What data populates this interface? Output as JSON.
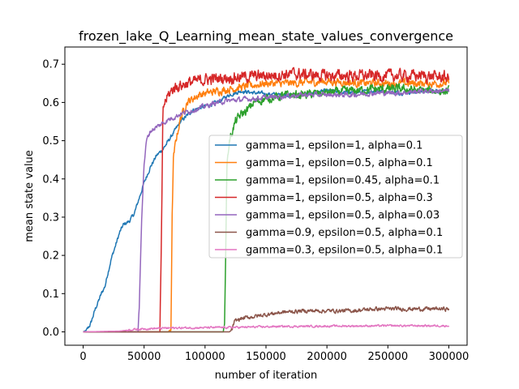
{
  "chart_data": {
    "type": "line",
    "title": "frozen_lake_Q_Learning_mean_state_values_convergence",
    "xlabel": "number of iteration",
    "ylabel": "mean state value",
    "xlim": [
      -15000,
      315000
    ],
    "ylim": [
      -0.035,
      0.745
    ],
    "xticks": [
      0,
      50000,
      100000,
      150000,
      200000,
      250000,
      300000
    ],
    "xtick_labels": [
      "0",
      "50000",
      "100000",
      "150000",
      "200000",
      "250000",
      "300000"
    ],
    "yticks": [
      0.0,
      0.1,
      0.2,
      0.3,
      0.4,
      0.5,
      0.6,
      0.7
    ],
    "ytick_labels": [
      "0.0",
      "0.1",
      "0.2",
      "0.3",
      "0.4",
      "0.5",
      "0.6",
      "0.7"
    ],
    "grid": false,
    "legend_position": "center-right",
    "series": [
      {
        "name": "gamma=1, epsilon=1, alpha=0.1",
        "color": "#1f77b4",
        "noise": 0.004,
        "points": [
          [
            0,
            0
          ],
          [
            3000,
            0.005
          ],
          [
            6000,
            0.02
          ],
          [
            10000,
            0.06
          ],
          [
            15000,
            0.1
          ],
          [
            18000,
            0.12
          ],
          [
            20000,
            0.15
          ],
          [
            23000,
            0.19
          ],
          [
            27000,
            0.23
          ],
          [
            30000,
            0.26
          ],
          [
            33000,
            0.28
          ],
          [
            38000,
            0.29
          ],
          [
            42000,
            0.31
          ],
          [
            46000,
            0.35
          ],
          [
            50000,
            0.39
          ],
          [
            55000,
            0.43
          ],
          [
            60000,
            0.46
          ],
          [
            66000,
            0.48
          ],
          [
            72000,
            0.51
          ],
          [
            80000,
            0.55
          ],
          [
            90000,
            0.58
          ],
          [
            100000,
            0.59
          ],
          [
            110000,
            0.6
          ],
          [
            120000,
            0.62
          ],
          [
            130000,
            0.63
          ],
          [
            140000,
            0.625
          ],
          [
            160000,
            0.62
          ],
          [
            180000,
            0.62
          ],
          [
            200000,
            0.63
          ],
          [
            220000,
            0.625
          ],
          [
            240000,
            0.63
          ],
          [
            260000,
            0.625
          ],
          [
            280000,
            0.63
          ],
          [
            300000,
            0.63
          ]
        ]
      },
      {
        "name": "gamma=1, epsilon=0.5, alpha=0.1",
        "color": "#ff7f0e",
        "noise": 0.008,
        "points": [
          [
            0,
            0
          ],
          [
            70000,
            0
          ],
          [
            72000,
            0.01
          ],
          [
            73000,
            0.3
          ],
          [
            74000,
            0.45
          ],
          [
            76000,
            0.5
          ],
          [
            80000,
            0.56
          ],
          [
            85000,
            0.6
          ],
          [
            95000,
            0.62
          ],
          [
            110000,
            0.63
          ],
          [
            130000,
            0.64
          ],
          [
            150000,
            0.65
          ],
          [
            170000,
            0.65
          ],
          [
            200000,
            0.655
          ],
          [
            230000,
            0.65
          ],
          [
            260000,
            0.65
          ],
          [
            300000,
            0.65
          ]
        ]
      },
      {
        "name": "gamma=1, epsilon=0.45, alpha=0.1",
        "color": "#2ca02c",
        "noise": 0.009,
        "points": [
          [
            0,
            0
          ],
          [
            115000,
            0
          ],
          [
            116000,
            0.015
          ],
          [
            118000,
            0.44
          ],
          [
            120000,
            0.5
          ],
          [
            125000,
            0.55
          ],
          [
            130000,
            0.57
          ],
          [
            135000,
            0.58
          ],
          [
            140000,
            0.6
          ],
          [
            150000,
            0.61
          ],
          [
            160000,
            0.615
          ],
          [
            170000,
            0.62
          ],
          [
            180000,
            0.62
          ],
          [
            200000,
            0.625
          ],
          [
            220000,
            0.63
          ],
          [
            240000,
            0.635
          ],
          [
            260000,
            0.635
          ],
          [
            280000,
            0.63
          ],
          [
            300000,
            0.63
          ]
        ]
      },
      {
        "name": "gamma=1, epsilon=0.5, alpha=0.3",
        "color": "#d62728",
        "noise": 0.012,
        "points": [
          [
            0,
            0
          ],
          [
            63000,
            0
          ],
          [
            64500,
            0.3
          ],
          [
            65500,
            0.58
          ],
          [
            67000,
            0.6
          ],
          [
            70000,
            0.62
          ],
          [
            75000,
            0.64
          ],
          [
            85000,
            0.65
          ],
          [
            100000,
            0.66
          ],
          [
            120000,
            0.665
          ],
          [
            150000,
            0.67
          ],
          [
            170000,
            0.675
          ],
          [
            200000,
            0.67
          ],
          [
            230000,
            0.67
          ],
          [
            260000,
            0.67
          ],
          [
            280000,
            0.67
          ],
          [
            300000,
            0.665
          ]
        ]
      },
      {
        "name": "gamma=1, epsilon=0.5, alpha=0.03",
        "color": "#9467bd",
        "noise": 0.005,
        "points": [
          [
            0,
            0
          ],
          [
            45000,
            0
          ],
          [
            46000,
            0.06
          ],
          [
            48000,
            0.3
          ],
          [
            50000,
            0.44
          ],
          [
            52000,
            0.5
          ],
          [
            55000,
            0.525
          ],
          [
            60000,
            0.535
          ],
          [
            65000,
            0.545
          ],
          [
            70000,
            0.555
          ],
          [
            80000,
            0.57
          ],
          [
            90000,
            0.58
          ],
          [
            100000,
            0.59
          ],
          [
            110000,
            0.6
          ],
          [
            120000,
            0.605
          ],
          [
            140000,
            0.61
          ],
          [
            160000,
            0.615
          ],
          [
            180000,
            0.62
          ],
          [
            200000,
            0.62
          ],
          [
            220000,
            0.62
          ],
          [
            240000,
            0.625
          ],
          [
            260000,
            0.625
          ],
          [
            280000,
            0.63
          ],
          [
            300000,
            0.63
          ]
        ]
      },
      {
        "name": "gamma=0.9, epsilon=0.5, alpha=0.1",
        "color": "#8c564b",
        "noise": 0.004,
        "points": [
          [
            0,
            0
          ],
          [
            120000,
            0
          ],
          [
            122000,
            0.005
          ],
          [
            124000,
            0.025
          ],
          [
            126000,
            0.03
          ],
          [
            130000,
            0.035
          ],
          [
            140000,
            0.04
          ],
          [
            160000,
            0.05
          ],
          [
            180000,
            0.055
          ],
          [
            200000,
            0.055
          ],
          [
            220000,
            0.055
          ],
          [
            240000,
            0.06
          ],
          [
            260000,
            0.06
          ],
          [
            280000,
            0.06
          ],
          [
            300000,
            0.06
          ]
        ]
      },
      {
        "name": "gamma=0.3, epsilon=0.5, alpha=0.1",
        "color": "#e377c2",
        "noise": 0.002,
        "points": [
          [
            0,
            0
          ],
          [
            30000,
            0.002
          ],
          [
            40000,
            0.006
          ],
          [
            50000,
            0.008
          ],
          [
            70000,
            0.01
          ],
          [
            100000,
            0.011
          ],
          [
            130000,
            0.012
          ],
          [
            160000,
            0.014
          ],
          [
            200000,
            0.015
          ],
          [
            250000,
            0.016
          ],
          [
            300000,
            0.016
          ]
        ]
      }
    ]
  }
}
